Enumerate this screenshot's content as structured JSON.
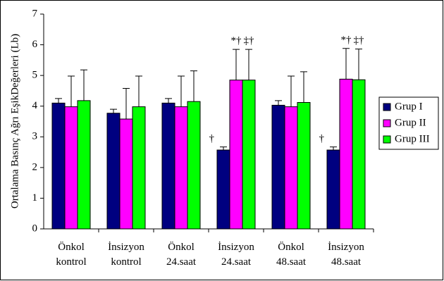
{
  "chart_data": {
    "type": "bar",
    "y_label": "Ortalama Basınç Ağrı EşikDeğerleri (Lb)",
    "categories": [
      "Önkol kontrol",
      "İnsizyon kontrol",
      "Önkol 24.saat",
      "İnsizyon 24.saat",
      "Önkol 48.saat",
      "İnsizyon 48.saat"
    ],
    "series": [
      {
        "name": "Grup I",
        "color": "#000080",
        "values": [
          4.1,
          3.77,
          4.1,
          2.57,
          4.03,
          2.57
        ],
        "errors": [
          0.15,
          0.13,
          0.15,
          0.1,
          0.15,
          0.1
        ],
        "annotations": [
          null,
          null,
          null,
          "†",
          null,
          "†"
        ]
      },
      {
        "name": "Grup II",
        "color": "#ff00ff",
        "values": [
          3.98,
          3.58,
          3.98,
          4.85,
          3.98,
          4.88
        ],
        "errors": [
          1.0,
          1.0,
          1.0,
          1.0,
          1.0,
          1.0
        ],
        "annotations": [
          null,
          null,
          null,
          "*†",
          null,
          "*†"
        ]
      },
      {
        "name": "Grup III",
        "color": "#00ff00",
        "values": [
          4.18,
          3.98,
          4.15,
          4.85,
          4.12,
          4.86
        ],
        "errors": [
          1.0,
          1.0,
          1.0,
          1.0,
          1.0,
          1.0
        ],
        "annotations": [
          null,
          null,
          null,
          "‡†",
          null,
          "‡†"
        ]
      }
    ],
    "ylim": [
      0,
      7
    ],
    "yticks": [
      0,
      1,
      2,
      3,
      4,
      5,
      6,
      7
    ],
    "grid": false,
    "legend": "right"
  }
}
